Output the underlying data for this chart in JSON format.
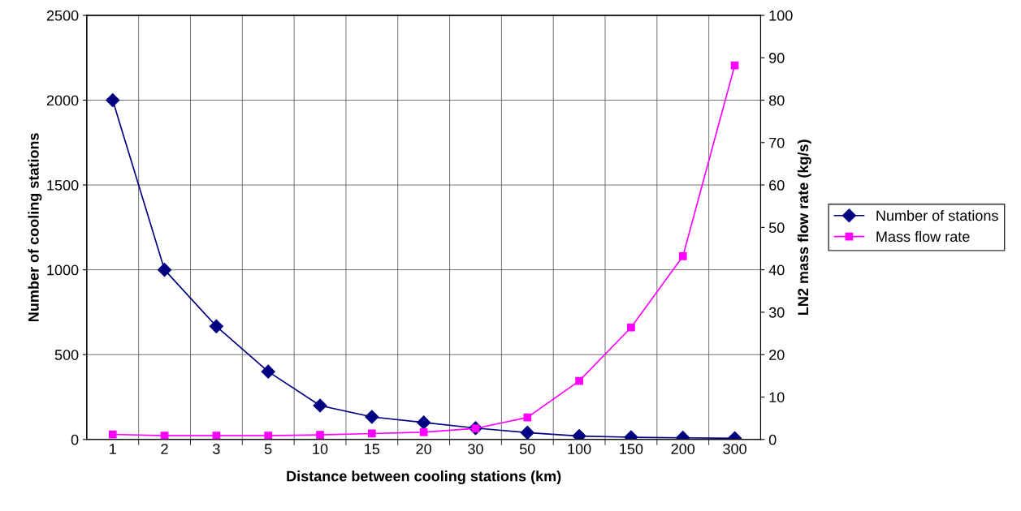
{
  "chart_data": {
    "type": "line",
    "xlabel": "Distance between cooling stations (km)",
    "ylabel": "Number of cooling stations",
    "y2label": "LN2 mass flow rate (kg/s)",
    "categories": [
      "1",
      "2",
      "3",
      "5",
      "10",
      "15",
      "20",
      "30",
      "50",
      "100",
      "150",
      "200",
      "300"
    ],
    "series": [
      {
        "name": "Number of stations",
        "color": "#000080",
        "marker": "diamond",
        "values": [
          2000,
          1000,
          667,
          400,
          200,
          133,
          100,
          67,
          40,
          20,
          13,
          10,
          7
        ]
      },
      {
        "name": "Mass flow rate",
        "color": "#ff00ff",
        "marker": "square",
        "axis": "y2",
        "values": [
          1.2,
          0.9,
          0.9,
          0.9,
          1.1,
          1.4,
          1.7,
          2.6,
          5.2,
          13.8,
          26.4,
          43.2,
          88.2
        ]
      }
    ],
    "ylim": [
      0,
      2500
    ],
    "yticks": [
      0,
      500,
      1000,
      1500,
      2000,
      2500
    ],
    "y2lim": [
      0,
      100
    ],
    "y2ticks": [
      0,
      10,
      20,
      30,
      40,
      50,
      60,
      70,
      80,
      90,
      100
    ],
    "grid": true,
    "legend": "right"
  }
}
